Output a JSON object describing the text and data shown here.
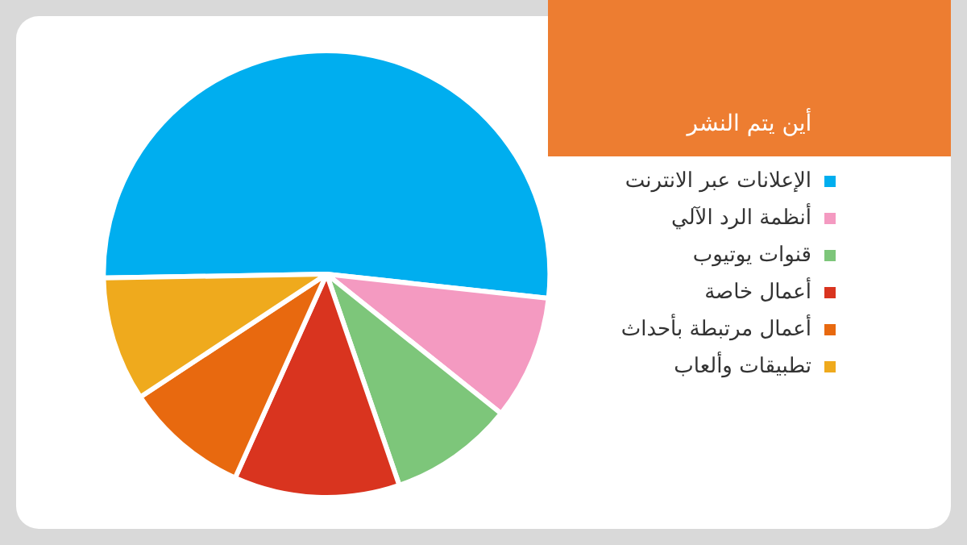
{
  "chart_data": {
    "type": "pie",
    "title": "أين يتم النشر",
    "categories": [
      "الإعلانات عبر الانترنت",
      "أنظمة الرد الآلي",
      "قنوات يوتيوب",
      "أعمال خاصة",
      "أعمال مرتبطة بأحداث",
      "تطبيقات وألعاب"
    ],
    "values": [
      52,
      9,
      9,
      12,
      9,
      9
    ],
    "colors": [
      "#00aeef",
      "#f49ac1",
      "#7dc67a",
      "#d9341f",
      "#e8690f",
      "#efaa1d"
    ],
    "legend": "right"
  }
}
